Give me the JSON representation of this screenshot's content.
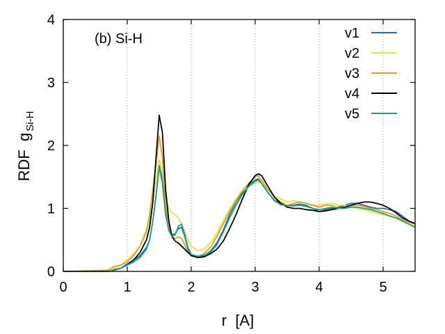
{
  "chart_data": {
    "type": "line",
    "annotation": "(b) Si-H",
    "xlabel": "r  [A]",
    "ylabel_main": "RDF  g",
    "ylabel_sub": "Si-H",
    "xlim": [
      0,
      5.5
    ],
    "ylim": [
      0,
      4
    ],
    "xticks": [
      0,
      1,
      2,
      3,
      4,
      5
    ],
    "yticks": [
      0,
      1,
      2,
      3,
      4
    ],
    "grid": "vertical dotted at x = 1..5",
    "legend_position": "top-right",
    "series": [
      {
        "name": "v1",
        "color": "#1f6fa8",
        "x": [
          0.0,
          0.7,
          0.8,
          0.9,
          1.0,
          1.1,
          1.2,
          1.3,
          1.35,
          1.4,
          1.45,
          1.5,
          1.55,
          1.6,
          1.65,
          1.7,
          1.75,
          1.8,
          1.85,
          1.9,
          1.95,
          2.0,
          2.1,
          2.2,
          2.3,
          2.4,
          2.5,
          2.6,
          2.7,
          2.8,
          2.9,
          3.0,
          3.05,
          3.1,
          3.2,
          3.3,
          3.4,
          3.5,
          3.6,
          3.7,
          3.8,
          3.9,
          4.0,
          4.1,
          4.2,
          4.3,
          4.4,
          4.5,
          4.6,
          4.7,
          4.8,
          4.9,
          5.0,
          5.1,
          5.2,
          5.3,
          5.4,
          5.5
        ],
        "y": [
          0.0,
          0.0,
          0.03,
          0.05,
          0.12,
          0.18,
          0.25,
          0.38,
          0.5,
          0.8,
          1.2,
          1.68,
          1.45,
          0.95,
          0.68,
          0.58,
          0.6,
          0.68,
          0.7,
          0.55,
          0.35,
          0.25,
          0.23,
          0.25,
          0.32,
          0.45,
          0.65,
          0.9,
          1.1,
          1.25,
          1.38,
          1.45,
          1.47,
          1.4,
          1.25,
          1.13,
          1.08,
          1.05,
          1.05,
          1.07,
          1.05,
          1.0,
          0.95,
          0.98,
          1.0,
          1.02,
          1.05,
          1.08,
          1.08,
          1.05,
          1.02,
          1.0,
          1.0,
          0.98,
          0.95,
          0.88,
          0.8,
          0.75
        ]
      },
      {
        "name": "v2",
        "color": "#e8e03c",
        "x": [
          0.0,
          0.7,
          0.8,
          0.9,
          1.0,
          1.1,
          1.2,
          1.3,
          1.35,
          1.4,
          1.45,
          1.5,
          1.55,
          1.6,
          1.65,
          1.7,
          1.75,
          1.8,
          1.85,
          1.9,
          1.95,
          2.0,
          2.1,
          2.2,
          2.3,
          2.4,
          2.5,
          2.6,
          2.7,
          2.8,
          2.9,
          3.0,
          3.05,
          3.1,
          3.2,
          3.3,
          3.4,
          3.5,
          3.6,
          3.7,
          3.8,
          3.9,
          4.0,
          4.1,
          4.2,
          4.3,
          4.4,
          4.5,
          4.6,
          4.7,
          4.8,
          4.9,
          5.0,
          5.1,
          5.2,
          5.3,
          5.4,
          5.5
        ],
        "y": [
          0.0,
          0.0,
          0.05,
          0.1,
          0.18,
          0.28,
          0.4,
          0.6,
          0.8,
          1.1,
          1.45,
          1.78,
          1.55,
          1.2,
          0.98,
          0.93,
          0.9,
          0.85,
          0.75,
          0.62,
          0.5,
          0.4,
          0.33,
          0.35,
          0.45,
          0.6,
          0.8,
          0.98,
          1.15,
          1.28,
          1.35,
          1.4,
          1.42,
          1.4,
          1.3,
          1.2,
          1.15,
          1.1,
          1.12,
          1.1,
          1.08,
          1.05,
          1.05,
          1.07,
          1.08,
          1.05,
          1.05,
          1.02,
          1.0,
          0.98,
          0.95,
          0.92,
          0.9,
          0.88,
          0.85,
          0.8,
          0.75,
          0.72
        ]
      },
      {
        "name": "v3",
        "color": "#e0a020",
        "x": [
          0.0,
          0.7,
          0.8,
          0.9,
          1.0,
          1.1,
          1.2,
          1.3,
          1.35,
          1.4,
          1.45,
          1.5,
          1.55,
          1.6,
          1.65,
          1.7,
          1.75,
          1.8,
          1.85,
          1.9,
          1.95,
          2.0,
          2.1,
          2.2,
          2.3,
          2.4,
          2.5,
          2.6,
          2.7,
          2.8,
          2.9,
          3.0,
          3.05,
          3.1,
          3.2,
          3.3,
          3.4,
          3.5,
          3.6,
          3.7,
          3.8,
          3.9,
          4.0,
          4.1,
          4.2,
          4.3,
          4.4,
          4.5,
          4.6,
          4.7,
          4.8,
          4.9,
          5.0,
          5.1,
          5.2,
          5.3,
          5.4,
          5.5
        ],
        "y": [
          0.0,
          0.02,
          0.08,
          0.1,
          0.15,
          0.25,
          0.4,
          0.65,
          0.9,
          1.3,
          1.7,
          2.15,
          1.8,
          1.05,
          0.7,
          0.55,
          0.52,
          0.55,
          0.52,
          0.42,
          0.3,
          0.25,
          0.23,
          0.28,
          0.38,
          0.55,
          0.75,
          0.95,
          1.12,
          1.28,
          1.4,
          1.5,
          1.52,
          1.45,
          1.3,
          1.18,
          1.1,
          1.05,
          1.08,
          1.1,
          1.08,
          1.05,
          1.02,
          1.05,
          1.05,
          1.0,
          1.02,
          1.05,
          1.05,
          1.03,
          1.0,
          0.98,
          0.95,
          0.92,
          0.88,
          0.82,
          0.78,
          0.75
        ]
      },
      {
        "name": "v4",
        "color": "#000000",
        "x": [
          0.0,
          0.7,
          0.8,
          0.9,
          1.0,
          1.1,
          1.2,
          1.3,
          1.35,
          1.4,
          1.45,
          1.5,
          1.55,
          1.6,
          1.65,
          1.7,
          1.75,
          1.8,
          1.85,
          1.9,
          1.95,
          2.0,
          2.1,
          2.2,
          2.3,
          2.4,
          2.5,
          2.6,
          2.7,
          2.8,
          2.9,
          3.0,
          3.05,
          3.1,
          3.2,
          3.3,
          3.4,
          3.5,
          3.6,
          3.7,
          3.8,
          3.9,
          4.0,
          4.1,
          4.2,
          4.3,
          4.4,
          4.5,
          4.6,
          4.7,
          4.8,
          4.9,
          5.0,
          5.1,
          5.2,
          5.3,
          5.4,
          5.5
        ],
        "y": [
          0.0,
          0.0,
          0.02,
          0.05,
          0.1,
          0.18,
          0.3,
          0.5,
          0.7,
          1.1,
          1.8,
          2.48,
          2.2,
          1.3,
          0.8,
          0.55,
          0.48,
          0.45,
          0.4,
          0.35,
          0.3,
          0.25,
          0.22,
          0.23,
          0.28,
          0.35,
          0.48,
          0.68,
          0.9,
          1.15,
          1.38,
          1.52,
          1.55,
          1.52,
          1.35,
          1.18,
          1.08,
          1.02,
          1.0,
          1.0,
          0.98,
          0.97,
          0.95,
          0.96,
          0.98,
          1.0,
          1.02,
          1.05,
          1.08,
          1.1,
          1.1,
          1.08,
          1.05,
          1.0,
          0.93,
          0.85,
          0.8,
          0.76
        ]
      },
      {
        "name": "v5",
        "color": "#1fa080",
        "x": [
          0.0,
          0.7,
          0.8,
          0.9,
          1.0,
          1.1,
          1.2,
          1.3,
          1.35,
          1.4,
          1.45,
          1.5,
          1.55,
          1.6,
          1.65,
          1.7,
          1.75,
          1.8,
          1.85,
          1.9,
          1.95,
          2.0,
          2.1,
          2.2,
          2.3,
          2.4,
          2.5,
          2.6,
          2.7,
          2.8,
          2.9,
          3.0,
          3.05,
          3.1,
          3.2,
          3.3,
          3.4,
          3.5,
          3.6,
          3.7,
          3.8,
          3.9,
          4.0,
          4.1,
          4.2,
          4.3,
          4.4,
          4.5,
          4.6,
          4.7,
          4.8,
          4.9,
          5.0,
          5.1,
          5.2,
          5.3,
          5.4,
          5.5
        ],
        "y": [
          0.0,
          0.0,
          0.02,
          0.05,
          0.1,
          0.15,
          0.22,
          0.35,
          0.5,
          0.8,
          1.2,
          1.65,
          1.4,
          0.9,
          0.65,
          0.55,
          0.58,
          0.72,
          0.75,
          0.58,
          0.38,
          0.27,
          0.24,
          0.26,
          0.3,
          0.42,
          0.62,
          0.85,
          1.05,
          1.22,
          1.35,
          1.43,
          1.45,
          1.4,
          1.25,
          1.12,
          1.06,
          1.04,
          1.04,
          1.05,
          1.03,
          1.0,
          0.98,
          1.0,
          1.02,
          1.0,
          1.0,
          1.02,
          1.02,
          1.0,
          0.98,
          0.95,
          0.92,
          0.88,
          0.85,
          0.8,
          0.75,
          0.7
        ]
      }
    ]
  }
}
